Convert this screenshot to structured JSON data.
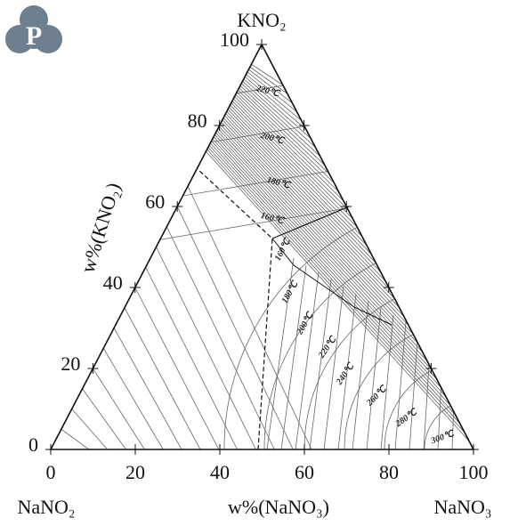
{
  "logo": "P",
  "labels": {
    "top_vertex": "KNO₂",
    "left_vertex": "NaNO₂",
    "right_vertex": "NaNO₃",
    "x_axis": "w%(NaNO₃)",
    "y_axis": "w%(KNO₂)"
  },
  "bottom_ticks": [
    "0",
    "20",
    "40",
    "60",
    "80",
    "100"
  ],
  "left_ticks": [
    "0",
    "20",
    "40",
    "60",
    "80",
    "100"
  ],
  "isotherms": [
    "220℃",
    "200℃",
    "180℃",
    "160℃",
    "160℃",
    "180℃",
    "200℃",
    "220℃",
    "240℃",
    "260℃",
    "280℃",
    "300℃"
  ]
}
